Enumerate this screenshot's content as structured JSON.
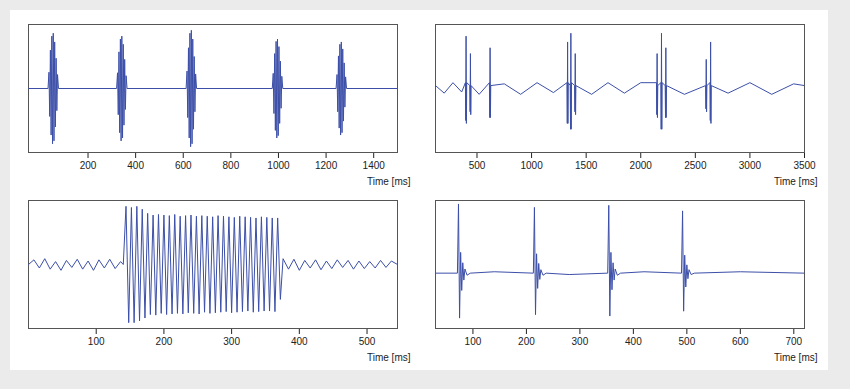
{
  "chart_data": [
    {
      "type": "line",
      "xlabel": "Time [ms]",
      "color": "#3c4fa8",
      "tick_labels": "x",
      "xlim": [
        -50,
        1500
      ],
      "xticks": [
        200,
        400,
        600,
        800,
        1000,
        1200,
        1400
      ],
      "ylim": [
        -1.1,
        1.1
      ],
      "x": [
        -50,
        32,
        36,
        39,
        42,
        45,
        48,
        51,
        54,
        57,
        60,
        63,
        66,
        69,
        72,
        76,
        320,
        324,
        327,
        330,
        333,
        336,
        339,
        342,
        345,
        348,
        351,
        354,
        357,
        360,
        364,
        612,
        616,
        619,
        622,
        625,
        628,
        631,
        634,
        637,
        640,
        643,
        646,
        649,
        652,
        656,
        974,
        978,
        981,
        984,
        987,
        990,
        993,
        996,
        999,
        1002,
        1005,
        1008,
        1011,
        1014,
        1018,
        1242,
        1246,
        1249,
        1252,
        1255,
        1258,
        1261,
        1264,
        1267,
        1270,
        1273,
        1276,
        1279,
        1282,
        1286,
        1500
      ],
      "values": [
        0,
        0,
        0.28,
        -0.48,
        0.66,
        -0.8,
        0.9,
        -0.95,
        0.95,
        -0.9,
        0.8,
        -0.66,
        0.52,
        -0.38,
        0.24,
        0,
        0,
        0.27,
        -0.45,
        0.63,
        -0.76,
        0.85,
        -0.9,
        0.9,
        -0.85,
        0.76,
        -0.63,
        0.5,
        -0.36,
        0.22,
        0,
        0,
        0.3,
        -0.5,
        0.7,
        -0.85,
        0.95,
        -1,
        1,
        -0.95,
        0.85,
        -0.7,
        0.55,
        -0.4,
        0.25,
        0,
        0,
        0.26,
        -0.43,
        0.6,
        -0.72,
        0.81,
        -0.85,
        0.85,
        -0.81,
        0.72,
        -0.6,
        0.47,
        -0.34,
        0.21,
        0,
        0,
        0.24,
        -0.4,
        0.56,
        -0.68,
        0.76,
        -0.8,
        0.8,
        -0.76,
        0.68,
        -0.56,
        0.44,
        -0.32,
        0.2,
        0,
        0
      ]
    },
    {
      "type": "line",
      "xlabel": "Time [ms]",
      "color": "#3c4fa8",
      "tick_labels": "x",
      "xlim": [
        120,
        3500
      ],
      "xticks": [
        500,
        1000,
        1500,
        2000,
        2500,
        3000,
        3500
      ],
      "ylim": [
        -1.1,
        1.1
      ],
      "x": [
        120,
        200,
        280,
        360,
        394,
        397,
        400,
        403,
        406,
        434,
        437,
        440,
        443,
        446,
        520,
        614,
        617,
        620,
        623,
        626,
        750,
        900,
        1050,
        1200,
        1324,
        1327,
        1330,
        1333,
        1336,
        1354,
        1357,
        1360,
        1363,
        1366,
        1394,
        1397,
        1400,
        1403,
        1406,
        1550,
        1700,
        1850,
        2000,
        2144,
        2147,
        2150,
        2153,
        2156,
        2184,
        2187,
        2190,
        2193,
        2196,
        2224,
        2227,
        2230,
        2233,
        2236,
        2400,
        2594,
        2597,
        2600,
        2603,
        2606,
        2634,
        2637,
        2640,
        2643,
        2646,
        2800,
        3000,
        3200,
        3400,
        3500
      ],
      "values": [
        0.05,
        -0.08,
        0.1,
        -0.06,
        0.1,
        -0.55,
        0.9,
        -0.6,
        0.1,
        0.05,
        -0.4,
        0.6,
        -0.45,
        0.05,
        -0.1,
        0.1,
        -0.5,
        0.7,
        -0.5,
        0.05,
        0.08,
        -0.1,
        0.1,
        -0.07,
        0.1,
        -0.6,
        0.8,
        -0.6,
        0.1,
        0.05,
        -0.7,
        0.95,
        -0.7,
        0.1,
        0.05,
        -0.4,
        0.6,
        -0.45,
        0.05,
        -0.1,
        0.1,
        -0.08,
        0.1,
        0.1,
        -0.45,
        0.6,
        -0.5,
        0.05,
        0.1,
        -0.7,
        0.95,
        -0.7,
        0.1,
        0.05,
        -0.5,
        0.7,
        -0.5,
        0.05,
        -0.1,
        0.05,
        -0.35,
        0.5,
        -0.4,
        0.05,
        0.1,
        -0.55,
        0.8,
        -0.6,
        0.05,
        -0.08,
        0.1,
        -0.1,
        0.08,
        0.05
      ]
    },
    {
      "type": "line",
      "xlabel": "Time [ms]",
      "color": "#3c4fa8",
      "tick_labels": "x",
      "xlim": [
        0,
        545
      ],
      "xticks": [
        100,
        200,
        300,
        400,
        500
      ],
      "ylim": [
        -1.1,
        1.1
      ],
      "x": [
        0,
        8,
        16,
        24,
        32,
        40,
        48,
        56,
        64,
        72,
        80,
        88,
        96,
        104,
        112,
        120,
        128,
        136,
        140,
        144,
        148,
        152,
        156,
        160,
        164,
        168,
        172,
        176,
        180,
        184,
        188,
        192,
        196,
        200,
        204,
        208,
        212,
        216,
        220,
        224,
        228,
        232,
        236,
        240,
        244,
        248,
        252,
        256,
        260,
        264,
        268,
        272,
        276,
        280,
        284,
        288,
        292,
        296,
        300,
        304,
        308,
        312,
        316,
        320,
        324,
        328,
        332,
        336,
        340,
        344,
        348,
        352,
        356,
        360,
        364,
        368,
        372,
        376,
        384,
        392,
        400,
        408,
        416,
        424,
        432,
        440,
        448,
        456,
        464,
        472,
        480,
        488,
        496,
        504,
        512,
        520,
        528,
        536,
        545
      ],
      "values": [
        0,
        0.08,
        -0.06,
        0.1,
        -0.08,
        0.05,
        -0.1,
        0.07,
        -0.05,
        0.09,
        -0.08,
        0.06,
        -0.1,
        0.08,
        -0.06,
        0.09,
        -0.07,
        0.05,
        0,
        1,
        -1,
        0.98,
        -1,
        1,
        -0.97,
        0.95,
        -0.92,
        0.88,
        -0.86,
        0.85,
        -0.87,
        0.86,
        -0.84,
        0.85,
        -0.86,
        0.84,
        -0.85,
        0.86,
        -0.84,
        0.83,
        -0.85,
        0.84,
        -0.83,
        0.85,
        -0.84,
        0.83,
        -0.85,
        0.84,
        -0.82,
        0.83,
        -0.84,
        0.82,
        -0.83,
        0.84,
        -0.82,
        0.83,
        -0.81,
        0.82,
        -0.83,
        0.81,
        -0.82,
        0.83,
        -0.81,
        0.82,
        -0.8,
        0.81,
        -0.82,
        0.8,
        -0.81,
        0.82,
        -0.8,
        0.81,
        -0.8,
        0.8,
        -0.81,
        0.8,
        -0.6,
        0.1,
        -0.08,
        0.09,
        -0.1,
        0.07,
        -0.06,
        0.08,
        -0.09,
        0.06,
        -0.07,
        0.08,
        -0.05,
        0.07,
        -0.08,
        0.06,
        -0.07,
        0.05,
        -0.06,
        0.07,
        -0.05,
        0.06,
        0
      ]
    },
    {
      "type": "line",
      "xlabel": "Time [ms]",
      "color": "#3c4fa8",
      "tick_labels": "x",
      "xlim": [
        30,
        720
      ],
      "xticks": [
        100,
        200,
        300,
        400,
        500,
        600,
        700
      ],
      "ylim": [
        -0.8,
        1.05
      ],
      "x": [
        30,
        71,
        73,
        75,
        77,
        79,
        81,
        83,
        85,
        89,
        95,
        140,
        213,
        215,
        217,
        219,
        221,
        223,
        225,
        227,
        231,
        237,
        280,
        352,
        354,
        356,
        358,
        360,
        362,
        364,
        366,
        370,
        376,
        420,
        490,
        492,
        494,
        496,
        498,
        500,
        502,
        504,
        508,
        514,
        600,
        720
      ],
      "values": [
        0,
        0,
        1,
        -0.65,
        0.3,
        -0.25,
        0.15,
        -0.1,
        0.06,
        -0.03,
        0,
        0.02,
        0,
        0.95,
        -0.6,
        0.28,
        -0.22,
        0.14,
        -0.09,
        0.05,
        -0.03,
        0,
        -0.02,
        0,
        0.98,
        -0.62,
        0.3,
        -0.24,
        0.15,
        -0.1,
        0.06,
        -0.03,
        0,
        0.02,
        0,
        0.9,
        -0.55,
        0.26,
        -0.2,
        0.12,
        -0.08,
        0.05,
        -0.02,
        0,
        0.02,
        0
      ]
    }
  ]
}
